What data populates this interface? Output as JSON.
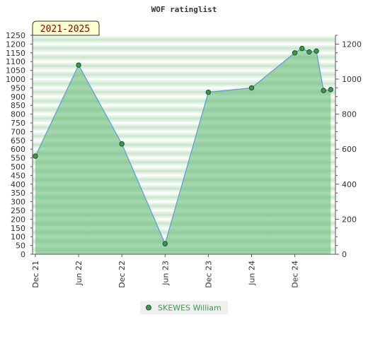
{
  "chart_data": {
    "type": "area",
    "title": "WOF ratinglist",
    "range_label": "2021-2025",
    "x_ticks": [
      "Dec 21",
      "Jun 22",
      "Dec 22",
      "Jun 23",
      "Dec 23",
      "Jun 24",
      "Dec 24"
    ],
    "left_axis": {
      "ylim": [
        0,
        1250
      ],
      "ticks": [
        0,
        50,
        100,
        150,
        200,
        250,
        300,
        350,
        400,
        450,
        500,
        550,
        600,
        650,
        700,
        750,
        800,
        850,
        900,
        950,
        1000,
        1050,
        1100,
        1150,
        1200,
        1250
      ]
    },
    "right_axis": {
      "ylim": [
        0,
        1250
      ],
      "ticks": [
        0,
        200,
        400,
        600,
        800,
        1000,
        1200
      ]
    },
    "grid": "horizontal bands",
    "legend_position": "bottom",
    "series": [
      {
        "name": "SKEWES William",
        "color": "#3a9a4a",
        "points": [
          {
            "x": "Dec 21",
            "y": 560
          },
          {
            "x": "Jun 22",
            "y": 1080
          },
          {
            "x": "Dec 22",
            "y": 630
          },
          {
            "x": "Jun 23",
            "y": 60
          },
          {
            "x": "Dec 23",
            "y": 925
          },
          {
            "x": "Jun 24",
            "y": 950
          },
          {
            "x": "Dec 24",
            "y": 1150
          },
          {
            "x": "Feb 25",
            "y": 1175
          },
          {
            "x": "Apr 25",
            "y": 1155
          },
          {
            "x": "Jun 25",
            "y": 1160
          },
          {
            "x": "Aug 25",
            "y": 935
          },
          {
            "x": "Oct 25",
            "y": 940
          }
        ]
      }
    ]
  }
}
